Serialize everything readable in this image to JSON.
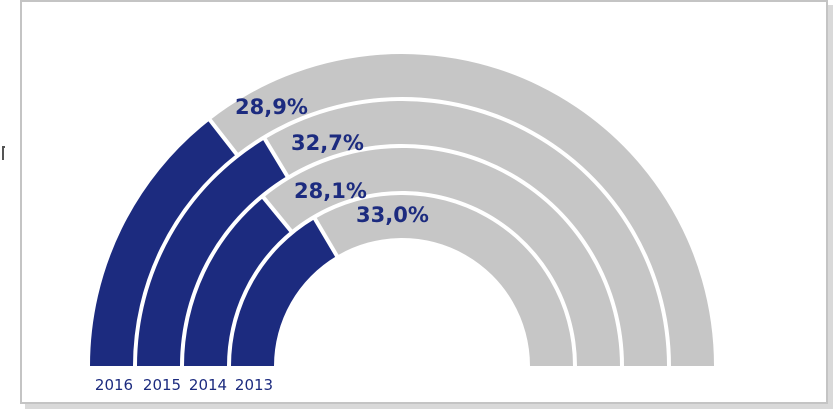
{
  "chart_data": {
    "type": "pie",
    "variant": "semicircle-radial-rings",
    "title": "",
    "series": [
      {
        "name": "2016",
        "value": 28.9,
        "label": "28,9%"
      },
      {
        "name": "2015",
        "value": 32.7,
        "label": "32,7%"
      },
      {
        "name": "2014",
        "value": 28.1,
        "label": "28,1%"
      },
      {
        "name": "2013",
        "value": 33.0,
        "label": "33,0%"
      }
    ],
    "colors": {
      "filled": "#1c2b7f",
      "remainder": "#c6c6c6",
      "label": "#1c2b7f"
    },
    "max": 100,
    "legend": "bottom-left"
  }
}
